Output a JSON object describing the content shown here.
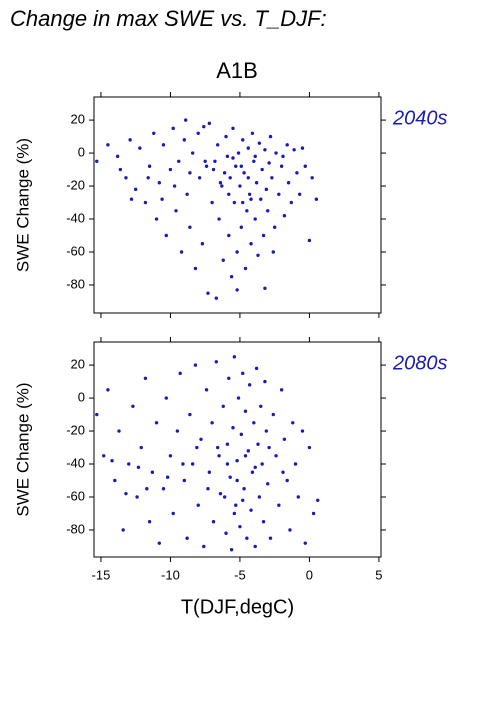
{
  "chart_data": [
    {
      "type": "scatter",
      "title": "Change in max SWE vs. T_DJF:",
      "subtitle": "A1B",
      "annotation": "2040s",
      "ylabel": "SWE Change (%)",
      "xlim": [
        -15.5,
        5.15
      ],
      "ylim": [
        -97,
        34
      ],
      "xticks": [
        -15,
        -10,
        -5,
        0,
        5
      ],
      "yticks": [
        -80,
        -60,
        -40,
        -20,
        0,
        20
      ],
      "series": [
        {
          "color": "#1a1ab8",
          "x": [
            -15.3,
            -14.5,
            -13.8,
            -13.2,
            -12.9,
            -12.5,
            -12.2,
            -11.8,
            -11.5,
            -11.2,
            -11,
            -10.8,
            -10.5,
            -10.3,
            -10,
            -9.8,
            -9.6,
            -9.4,
            -9.2,
            -9,
            -8.8,
            -8.6,
            -8.4,
            -8.2,
            -8,
            -7.9,
            -7.7,
            -7.5,
            -7.3,
            -7.2,
            -7,
            -6.9,
            -6.7,
            -6.6,
            -6.5,
            -6.3,
            -6.2,
            -6,
            -5.9,
            -5.8,
            -5.7,
            -5.6,
            -5.5,
            -5.4,
            -5.3,
            -5.2,
            -5.1,
            -5,
            -4.9,
            -4.8,
            -4.7,
            -4.6,
            -4.5,
            -4.4,
            -4.3,
            -4.2,
            -4.1,
            -4,
            -3.9,
            -3.8,
            -3.7,
            -3.6,
            -3.5,
            -3.4,
            -3.3,
            -3.2,
            -3.1,
            -3,
            -2.8,
            -2.7,
            -2.5,
            -2.4,
            -2.2,
            -2,
            -1.8,
            -1.6,
            -1.5,
            -1.3,
            -1.1,
            -0.9,
            -0.7,
            -0.5,
            -0.3,
            0,
            0.2,
            0.5,
            -6.8,
            -6.1,
            -5.5,
            -4.9,
            -4.4,
            -3.9,
            -7.4,
            -8.6,
            -9.7,
            -2.9,
            -1.9,
            -5.8,
            -6.4,
            -4.2,
            -10.6,
            -11.6,
            -12.8,
            -13.6,
            -8.9,
            -5.2,
            -7.6,
            -2.6,
            -4.8,
            -3.2
          ],
          "values": [
            -5,
            5,
            -2,
            -15,
            8,
            -22,
            3,
            -30,
            -8,
            12,
            -40,
            -18,
            5,
            -50,
            -10,
            15,
            -35,
            -5,
            -60,
            8,
            -25,
            -45,
            0,
            -70,
            12,
            -15,
            -55,
            -5,
            -85,
            18,
            -30,
            -10,
            -88,
            5,
            -40,
            -20,
            -65,
            10,
            -2,
            -50,
            -15,
            -75,
            15,
            -30,
            -8,
            -60,
            0,
            -20,
            -45,
            8,
            -12,
            -70,
            -35,
            3,
            -25,
            -55,
            12,
            -5,
            -40,
            -18,
            -62,
            6,
            -28,
            -10,
            -50,
            2,
            -22,
            -35,
            10,
            -15,
            -45,
            0,
            -25,
            -8,
            -38,
            5,
            -18,
            -30,
            2,
            -12,
            -25,
            3,
            -8,
            -53,
            -15,
            -28,
            -5,
            -12,
            -3,
            -8,
            -15,
            -2,
            -8,
            -12,
            -20,
            -6,
            -2,
            -25,
            -18,
            -28,
            -28,
            -15,
            -28,
            -10,
            20,
            -83,
            16,
            -60,
            -30,
            -82
          ]
        }
      ]
    },
    {
      "type": "scatter",
      "annotation": "2080s",
      "ylabel": "SWE Change (%)",
      "xlabel": "T(DJF,degC)",
      "xlim": [
        -15.5,
        5.15
      ],
      "ylim": [
        -96.4,
        34
      ],
      "xticks": [
        -15,
        -10,
        -5,
        0,
        5
      ],
      "yticks": [
        -80,
        -60,
        -40,
        -20,
        0,
        20
      ],
      "series": [
        {
          "color": "#1a1ab8",
          "x": [
            -15.3,
            -14.8,
            -14.5,
            -14,
            -13.7,
            -13.4,
            -13,
            -12.7,
            -12.4,
            -12.1,
            -11.8,
            -11.5,
            -11.3,
            -11,
            -10.8,
            -10.5,
            -10.3,
            -10,
            -9.8,
            -9.5,
            -9.3,
            -9,
            -8.8,
            -8.6,
            -8.4,
            -8.2,
            -8,
            -7.8,
            -7.6,
            -7.4,
            -7.2,
            -7,
            -6.9,
            -6.7,
            -6.5,
            -6.4,
            -6.2,
            -6,
            -5.9,
            -5.8,
            -5.7,
            -5.6,
            -5.5,
            -5.4,
            -5.3,
            -5.2,
            -5.1,
            -5,
            -4.9,
            -4.8,
            -4.7,
            -4.6,
            -4.5,
            -4.4,
            -4.3,
            -4.2,
            -4.1,
            -4,
            -3.9,
            -3.8,
            -3.7,
            -3.6,
            -3.5,
            -3.4,
            -3.3,
            -3.2,
            -3.1,
            -3,
            -2.8,
            -2.6,
            -2.4,
            -2.2,
            -2,
            -1.8,
            -1.6,
            -1.4,
            -1.2,
            -1,
            -0.8,
            -0.5,
            -0.3,
            0,
            0.3,
            0.6,
            -6.6,
            -5.9,
            -5.2,
            -4.6,
            -3.9,
            -7.3,
            -8.1,
            -9.1,
            -10.2,
            -11.7,
            -12.3,
            -13.2,
            -14.2,
            -6.1,
            -5.4,
            -4.8,
            -2.9,
            -1.9
          ],
          "values": [
            -10,
            -35,
            5,
            -50,
            -20,
            -80,
            -40,
            -5,
            -60,
            -30,
            12,
            -75,
            -45,
            -15,
            -88,
            -55,
            0,
            -35,
            -70,
            -20,
            15,
            -50,
            -85,
            -10,
            -40,
            20,
            -65,
            -25,
            -90,
            5,
            -45,
            -15,
            -75,
            22,
            -35,
            -58,
            -5,
            -82,
            -28,
            12,
            -48,
            -92,
            -18,
            25,
            -65,
            -38,
            0,
            -78,
            -22,
            15,
            -55,
            -8,
            -85,
            -32,
            8,
            -68,
            -45,
            -15,
            -90,
            18,
            -28,
            -60,
            -5,
            -40,
            -75,
            10,
            -20,
            -52,
            -85,
            -10,
            -35,
            -65,
            5,
            -25,
            -50,
            -80,
            -15,
            -40,
            -60,
            -20,
            -88,
            -30,
            -70,
            -62,
            -30,
            -40,
            -50,
            -35,
            -42,
            -55,
            -30,
            -40,
            -48,
            -55,
            -42,
            -58,
            -38,
            -60,
            -70,
            -62,
            -30,
            -45
          ]
        }
      ]
    }
  ]
}
